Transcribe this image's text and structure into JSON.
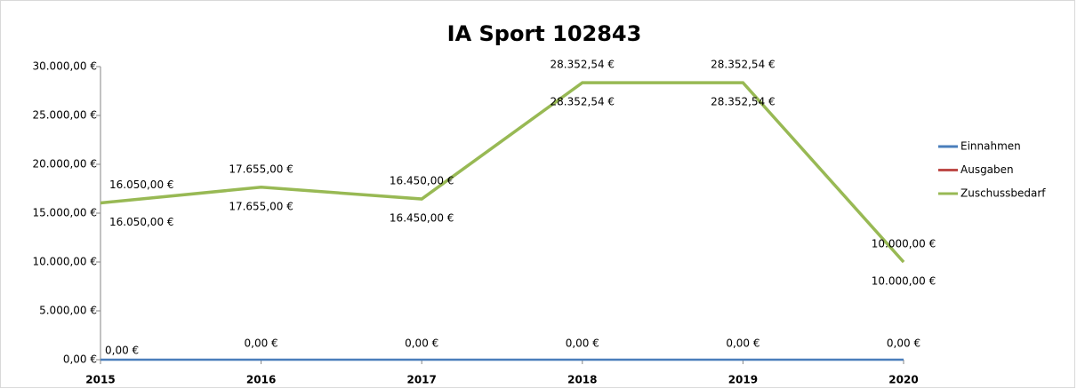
{
  "chart_data": {
    "type": "line",
    "title": "IA Sport 102843",
    "categories": [
      "2015",
      "2016",
      "2017",
      "2018",
      "2019",
      "2020"
    ],
    "series": [
      {
        "name": "Einnahmen",
        "color": "#4a7ebb",
        "values": [
          0,
          0,
          0,
          0,
          0,
          0
        ],
        "value_labels": [
          "0,00 €",
          "0,00 €",
          "0,00 €",
          "0,00 €",
          "0,00 €",
          "0,00 €"
        ]
      },
      {
        "name": "Ausgaben",
        "color": "#be4b48",
        "values": [
          16050,
          17655,
          16450,
          28352.54,
          28352.54,
          10000
        ],
        "value_labels": [
          "16.050,00 €",
          "17.655,00 €",
          "16.450,00 €",
          "28.352,54 €",
          "28.352,54 €",
          "10.000,00 €"
        ]
      },
      {
        "name": "Zuschussbedarf",
        "color": "#98b954",
        "values": [
          16050,
          17655,
          16450,
          28352.54,
          28352.54,
          10000
        ],
        "value_labels": [
          "16.050,00 €",
          "17.655,00 €",
          "16.450,00 €",
          "28.352,54 €",
          "28.352,54 €",
          "10.000,00 €"
        ]
      }
    ],
    "ylim": [
      0,
      30000
    ],
    "yticks": [
      {
        "value": 0,
        "label": "0,00 €"
      },
      {
        "value": 5000,
        "label": "5.000,00 €"
      },
      {
        "value": 10000,
        "label": "10.000,00 €"
      },
      {
        "value": 15000,
        "label": "15.000,00 €"
      },
      {
        "value": 20000,
        "label": "20.000,00 €"
      },
      {
        "value": 25000,
        "label": "25.000,00 €"
      },
      {
        "value": 30000,
        "label": "30.000,00 €"
      }
    ],
    "legend": "right"
  }
}
